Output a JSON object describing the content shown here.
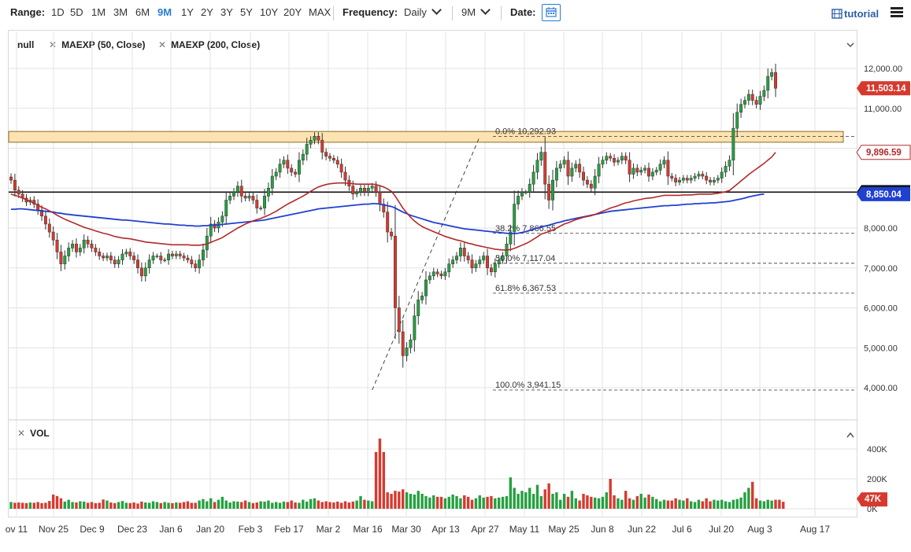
{
  "toolbar": {
    "range_label": "Range:",
    "ranges": [
      "1D",
      "5D",
      "1M",
      "3M",
      "6M",
      "9M",
      "1Y",
      "2Y",
      "3Y",
      "5Y",
      "10Y",
      "20Y",
      "MAX"
    ],
    "active_range": "9M",
    "frequency_label": "Frequency:",
    "frequency_value": "Daily",
    "period_value": "9M",
    "date_label": "Date:",
    "tutorial_label": "tutorial"
  },
  "legend": {
    "main": "null",
    "ma1": "MAEXP (50, Close)",
    "ma2": "MAEXP (200, Close)",
    "vol": "VOL"
  },
  "colors": {
    "up": "#26a041",
    "down": "#d63a2f",
    "ma50": "#b22a2a",
    "ma200": "#2040d0",
    "zone": "#fde3b0",
    "accent": "#2a7bd4"
  },
  "chart_data": {
    "type": "candlestick",
    "price_axis_labels": [
      "12,000.00",
      "11,000.00",
      "10,000.00",
      "9,000.00",
      "8,000.00",
      "7,000.00",
      "6,000.00",
      "5,000.00",
      "4,000.00"
    ],
    "price_axis_values": [
      12000,
      11000,
      10000,
      9000,
      8000,
      7000,
      6000,
      5000,
      4000
    ],
    "ylim": [
      3700,
      12600
    ],
    "x_labels": [
      "ov 11",
      "Nov 25",
      "Dec 9",
      "Dec 23",
      "Jan 6",
      "Jan 20",
      "Feb 3",
      "Feb 17",
      "Mar 2",
      "Mar 16",
      "Mar 30",
      "Apr 13",
      "Apr 27",
      "May 11",
      "May 25",
      "Jun 8",
      "Jun 22",
      "Jul 6",
      "Jul 20",
      "Aug 3",
      "Aug 17"
    ],
    "last_price_label": "11,503.14",
    "last_price": 11503.14,
    "ma50_label": "9,896.59",
    "ma50_value": 9896.59,
    "ma200_label": "8,850.04",
    "ma200_value": 8850.04,
    "hline_label": "8,900.00",
    "hline_value": 8900,
    "zone": [
      10150,
      10420
    ],
    "fibonacci": [
      {
        "label": "0.0%",
        "value_label": "10,292.93",
        "value": 10292.93
      },
      {
        "label": "38.2%",
        "value_label": "7,866.55",
        "value": 7866.55
      },
      {
        "label": "50.0%",
        "value_label": "7,117.04",
        "value": 7117.04
      },
      {
        "label": "61.8%",
        "value_label": "6,367.53",
        "value": 6367.53
      },
      {
        "label": "100.0%",
        "value_label": "3,941.15",
        "value": 3941.15
      }
    ],
    "trendline": {
      "from_date_index": 94,
      "from_value": 3941.15,
      "to_date_index": 122,
      "to_value": 10292.93
    },
    "close_series": [
      9200,
      8950,
      8850,
      8750,
      8650,
      8700,
      8600,
      8450,
      8300,
      8100,
      7900,
      7700,
      7400,
      7100,
      7300,
      7500,
      7600,
      7400,
      7500,
      7700,
      7600,
      7500,
      7400,
      7300,
      7250,
      7300,
      7200,
      7100,
      7200,
      7350,
      7400,
      7300,
      7200,
      7000,
      6800,
      7000,
      7200,
      7300,
      7300,
      7200,
      7200,
      7350,
      7300,
      7350,
      7300,
      7250,
      7200,
      7100,
      7000,
      7200,
      7450,
      7800,
      8100,
      8000,
      8150,
      8300,
      8700,
      8800,
      8900,
      9050,
      8800,
      8750,
      8800,
      8700,
      8500,
      8500,
      8800,
      9000,
      9300,
      9400,
      9600,
      9700,
      9500,
      9400,
      9350,
      9700,
      9850,
      10100,
      10200,
      10300,
      10200,
      9900,
      9800,
      9750,
      9700,
      9600,
      9400,
      9200,
      9050,
      8850,
      8900,
      9000,
      8900,
      9000,
      9050,
      8900,
      8600,
      8400,
      7900,
      7800,
      6000,
      5400,
      4800,
      5000,
      5200,
      5800,
      6200,
      6300,
      6700,
      6800,
      6900,
      6850,
      6800,
      6900,
      7100,
      7200,
      7300,
      7500,
      7300,
      7200,
      7000,
      7100,
      7200,
      7300,
      7000,
      6900,
      7100,
      7200,
      7300,
      7600,
      7900,
      8600,
      8800,
      8900,
      8900,
      9100,
      9400,
      9700,
      9900,
      9100,
      8700,
      9200,
      9500,
      9600,
      9700,
      9300,
      9500,
      9600,
      9400,
      9200,
      9100,
      9000,
      9300,
      9600,
      9700,
      9800,
      9750,
      9650,
      9700,
      9800,
      9700,
      9350,
      9500,
      9400,
      9450,
      9500,
      9300,
      9400,
      9450,
      9600,
      9700,
      9300,
      9250,
      9150,
      9200,
      9250,
      9200,
      9250,
      9300,
      9350,
      9300,
      9200,
      9150,
      9200,
      9250,
      9400,
      9550,
      9700,
      10500,
      10900,
      11100,
      11200,
      11350,
      11200,
      11100,
      11300,
      11450,
      11800,
      11900,
      11503
    ],
    "ma50_series": [
      8850,
      8820,
      8790,
      8750,
      8710,
      8670,
      8620,
      8570,
      8520,
      8480,
      8430,
      8380,
      8320,
      8270,
      8220,
      8180,
      8140,
      8100,
      8060,
      8020,
      7990,
      7960,
      7930,
      7900,
      7870,
      7850,
      7820,
      7790,
      7770,
      7750,
      7740,
      7730,
      7710,
      7690,
      7670,
      7650,
      7640,
      7630,
      7620,
      7610,
      7600,
      7590,
      7580,
      7580,
      7580,
      7580,
      7580,
      7570,
      7570,
      7570,
      7580,
      7600,
      7640,
      7680,
      7720,
      7760,
      7820,
      7880,
      7940,
      8000,
      8050,
      8100,
      8140,
      8180,
      8210,
      8240,
      8280,
      8320,
      8370,
      8420,
      8480,
      8540,
      8600,
      8650,
      8700,
      8750,
      8800,
      8860,
      8920,
      8980,
      9030,
      9060,
      9090,
      9110,
      9120,
      9130,
      9130,
      9130,
      9120,
      9110,
      9100,
      9100,
      9100,
      9100,
      9100,
      9090,
      9060,
      9030,
      8980,
      8920,
      8800,
      8650,
      8500,
      8380,
      8270,
      8180,
      8100,
      8040,
      7990,
      7950,
      7910,
      7870,
      7830,
      7790,
      7760,
      7730,
      7700,
      7680,
      7650,
      7620,
      7600,
      7570,
      7550,
      7530,
      7510,
      7490,
      7470,
      7460,
      7450,
      7450,
      7460,
      7490,
      7530,
      7570,
      7610,
      7660,
      7720,
      7780,
      7850,
      7880,
      7910,
      7950,
      8000,
      8050,
      8100,
      8130,
      8170,
      8210,
      8240,
      8270,
      8290,
      8310,
      8340,
      8380,
      8420,
      8460,
      8500,
      8530,
      8560,
      8600,
      8630,
      8650,
      8680,
      8700,
      8720,
      8740,
      8750,
      8760,
      8780,
      8800,
      8820,
      8820,
      8820,
      8820,
      8820,
      8830,
      8830,
      8830,
      8840,
      8850,
      8850,
      8850,
      8850,
      8860,
      8870,
      8890,
      8910,
      8940,
      9020,
      9100,
      9180,
      9260,
      9340,
      9410,
      9480,
      9550,
      9620,
      9700,
      9780,
      9896
    ],
    "ma200_series": [
      8470,
      8470,
      8480,
      8480,
      8470,
      8460,
      8450,
      8440,
      8430,
      8420,
      8410,
      8400,
      8380,
      8370,
      8350,
      8340,
      8330,
      8320,
      8310,
      8300,
      8290,
      8280,
      8270,
      8260,
      8250,
      8240,
      8230,
      8220,
      8210,
      8200,
      8200,
      8190,
      8180,
      8170,
      8160,
      8150,
      8140,
      8130,
      8120,
      8110,
      8100,
      8100,
      8090,
      8080,
      8070,
      8070,
      8060,
      8060,
      8050,
      8050,
      8060,
      8060,
      8070,
      8070,
      8080,
      8090,
      8100,
      8110,
      8120,
      8130,
      8140,
      8150,
      8160,
      8170,
      8180,
      8190,
      8200,
      8220,
      8240,
      8260,
      8280,
      8300,
      8320,
      8340,
      8360,
      8380,
      8400,
      8420,
      8440,
      8460,
      8480,
      8490,
      8500,
      8510,
      8520,
      8530,
      8540,
      8550,
      8560,
      8570,
      8580,
      8590,
      8600,
      8600,
      8610,
      8610,
      8600,
      8580,
      8560,
      8540,
      8500,
      8450,
      8400,
      8360,
      8320,
      8290,
      8260,
      8230,
      8200,
      8170,
      8140,
      8120,
      8100,
      8080,
      8060,
      8040,
      8020,
      8000,
      7980,
      7970,
      7960,
      7950,
      7940,
      7930,
      7920,
      7910,
      7900,
      7890,
      7880,
      7870,
      7860,
      7860,
      7870,
      7890,
      7910,
      7940,
      7970,
      8000,
      8030,
      8050,
      8070,
      8100,
      8130,
      8150,
      8180,
      8200,
      8220,
      8240,
      8260,
      8280,
      8300,
      8320,
      8340,
      8360,
      8380,
      8400,
      8420,
      8430,
      8440,
      8450,
      8460,
      8470,
      8480,
      8490,
      8500,
      8510,
      8520,
      8530,
      8540,
      8550,
      8560,
      8560,
      8570,
      8570,
      8580,
      8590,
      8600,
      8600,
      8610,
      8610,
      8620,
      8620,
      8630,
      8630,
      8640,
      8650,
      8660,
      8670,
      8690,
      8710,
      8730,
      8750,
      8780,
      8800,
      8820,
      8840,
      8850
    ],
    "volume_axis_labels": [
      "400K",
      "200K",
      "0K"
    ],
    "volume_axis_values": [
      400000,
      200000,
      0
    ],
    "volume_last_label": "47K",
    "volume_series": [
      45,
      40,
      42,
      40,
      38,
      42,
      40,
      45,
      38,
      40,
      52,
      95,
      85,
      70,
      48,
      60,
      45,
      42,
      50,
      48,
      40,
      45,
      38,
      40,
      62,
      55,
      42,
      38,
      45,
      52,
      40,
      38,
      42,
      35,
      48,
      42,
      40,
      50,
      45,
      38,
      45,
      40,
      38,
      42,
      40,
      45,
      50,
      40,
      40,
      55,
      65,
      50,
      70,
      45,
      60,
      80,
      55,
      42,
      50,
      48,
      45,
      55,
      45,
      38,
      42,
      50,
      48,
      55,
      40,
      45,
      40,
      48,
      45,
      55,
      42,
      40,
      60,
      48,
      65,
      70,
      55,
      45,
      50,
      45,
      42,
      48,
      40,
      50,
      42,
      48,
      55,
      85,
      60,
      55,
      50,
      380,
      470,
      380,
      110,
      100,
      120,
      115,
      130,
      110,
      100,
      95,
      120,
      100,
      85,
      75,
      90,
      80,
      80,
      70,
      80,
      95,
      85,
      70,
      90,
      80,
      60,
      70,
      90,
      75,
      80,
      85,
      70,
      75,
      80,
      85,
      210,
      140,
      100,
      120,
      110,
      140,
      100,
      160,
      85,
      130,
      170,
      100,
      110,
      60,
      100,
      80,
      120,
      70,
      55,
      100,
      90,
      80,
      75,
      70,
      80,
      110,
      200,
      90,
      70,
      60,
      120,
      70,
      60,
      85,
      100,
      75,
      95,
      80,
      65,
      50,
      60,
      55,
      55,
      70,
      60,
      55,
      70,
      50,
      45,
      60,
      50,
      70,
      50,
      60,
      55,
      60,
      50,
      45,
      60,
      65,
      75,
      110,
      140,
      180,
      70,
      55,
      50,
      60,
      55,
      60,
      60,
      47
    ]
  }
}
